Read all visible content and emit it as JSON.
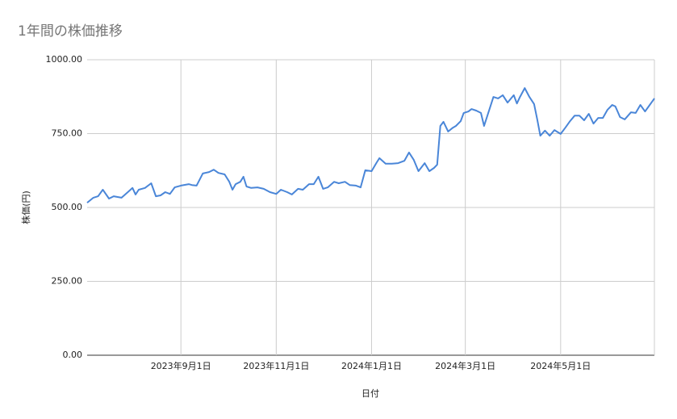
{
  "chart_data": {
    "type": "line",
    "title": "1年間の株価推移",
    "x_label": "日付",
    "y_label": "株価(円)",
    "x": [
      "2023-07-03",
      "2023-07-07",
      "2023-07-10",
      "2023-07-13",
      "2023-07-17",
      "2023-07-20",
      "2023-07-25",
      "2023-07-29",
      "2023-08-01",
      "2023-08-03",
      "2023-08-05",
      "2023-08-09",
      "2023-08-13",
      "2023-08-16",
      "2023-08-19",
      "2023-08-22",
      "2023-08-25",
      "2023-08-28",
      "2023-09-01",
      "2023-09-06",
      "2023-09-08",
      "2023-09-11",
      "2023-09-15",
      "2023-09-19",
      "2023-09-22",
      "2023-09-25",
      "2023-09-29",
      "2023-10-02",
      "2023-10-04",
      "2023-10-06",
      "2023-10-09",
      "2023-10-11",
      "2023-10-13",
      "2023-10-16",
      "2023-10-20",
      "2023-10-24",
      "2023-10-28",
      "2023-11-01",
      "2023-11-04",
      "2023-11-08",
      "2023-11-11",
      "2023-11-15",
      "2023-11-18",
      "2023-11-22",
      "2023-11-25",
      "2023-11-28",
      "2023-12-01",
      "2023-12-04",
      "2023-12-08",
      "2023-12-11",
      "2023-12-15",
      "2023-12-18",
      "2023-12-22",
      "2023-12-25",
      "2023-12-28",
      "2024-01-01",
      "2024-01-04",
      "2024-01-06",
      "2024-01-10",
      "2024-01-14",
      "2024-01-18",
      "2024-01-22",
      "2024-01-25",
      "2024-01-28",
      "2024-01-31",
      "2024-02-04",
      "2024-02-07",
      "2024-02-10",
      "2024-02-12",
      "2024-02-14",
      "2024-02-16",
      "2024-02-19",
      "2024-02-22",
      "2024-02-24",
      "2024-02-27",
      "2024-02-29",
      "2024-03-03",
      "2024-03-05",
      "2024-03-08",
      "2024-03-11",
      "2024-03-13",
      "2024-03-16",
      "2024-03-19",
      "2024-03-22",
      "2024-03-25",
      "2024-03-28",
      "2024-04-01",
      "2024-04-03",
      "2024-04-05",
      "2024-04-08",
      "2024-04-11",
      "2024-04-14",
      "2024-04-16",
      "2024-04-18",
      "2024-04-21",
      "2024-04-24",
      "2024-04-27",
      "2024-05-01",
      "2024-05-04",
      "2024-05-07",
      "2024-05-10",
      "2024-05-13",
      "2024-05-16",
      "2024-05-19",
      "2024-05-22",
      "2024-05-25",
      "2024-05-28",
      "2024-05-31",
      "2024-06-03",
      "2024-06-05",
      "2024-06-08",
      "2024-06-11",
      "2024-06-15",
      "2024-06-18",
      "2024-06-21",
      "2024-06-24",
      "2024-06-27",
      "2024-06-30"
    ],
    "series": [
      {
        "name": "株価",
        "color": "#4a86d8",
        "values": [
          516,
          533,
          538,
          560,
          530,
          538,
          533,
          552,
          566,
          544,
          560,
          566,
          582,
          538,
          541,
          552,
          546,
          568,
          574,
          579,
          576,
          574,
          615,
          620,
          628,
          617,
          612,
          587,
          560,
          579,
          587,
          604,
          571,
          566,
          568,
          563,
          552,
          546,
          560,
          552,
          544,
          563,
          560,
          579,
          579,
          604,
          563,
          568,
          587,
          582,
          587,
          576,
          574,
          568,
          626,
          623,
          650,
          667,
          648,
          648,
          650,
          658,
          686,
          661,
          623,
          650,
          623,
          634,
          645,
          776,
          790,
          757,
          770,
          776,
          792,
          820,
          825,
          833,
          828,
          820,
          776,
          825,
          874,
          869,
          880,
          855,
          880,
          852,
          874,
          904,
          874,
          850,
          798,
          743,
          760,
          743,
          762,
          749,
          770,
          792,
          811,
          811,
          795,
          817,
          784,
          803,
          803,
          831,
          847,
          842,
          806,
          798,
          822,
          820,
          847,
          825,
          847,
          869
        ]
      }
    ],
    "xlim": [
      "2023-07-03",
      "2024-06-30"
    ],
    "xticks": [
      {
        "value": "2023-09-01",
        "label": "2023年9月1日"
      },
      {
        "value": "2023-11-01",
        "label": "2023年11月1日"
      },
      {
        "value": "2024-01-01",
        "label": "2024年1月1日"
      },
      {
        "value": "2024-03-01",
        "label": "2024年3月1日"
      },
      {
        "value": "2024-05-01",
        "label": "2024年5月1日"
      }
    ],
    "ylim": [
      0,
      1000
    ],
    "yticks": [
      {
        "value": 0,
        "label": "0.00"
      },
      {
        "value": 250,
        "label": "250.00"
      },
      {
        "value": 500,
        "label": "500.00"
      },
      {
        "value": 750,
        "label": "750.00"
      },
      {
        "value": 1000,
        "label": "1000.00"
      }
    ],
    "grid": true
  }
}
